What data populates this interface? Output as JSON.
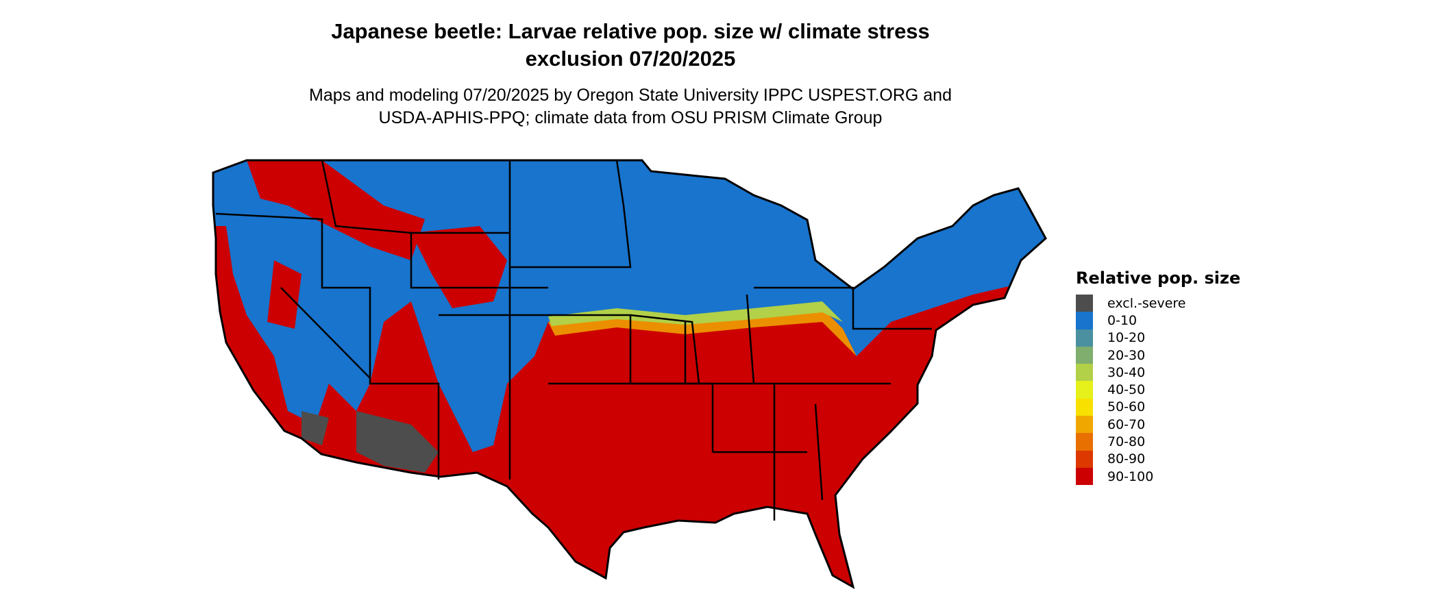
{
  "title_line1": "Japanese beetle: Larvae relative pop. size w/ climate stress",
  "title_line2": "exclusion 07/20/2025",
  "subtitle_line1": "Maps and modeling 07/20/2025 by Oregon State University IPPC USPEST.ORG and",
  "subtitle_line2": "USDA-APHIS-PPQ; climate data from OSU PRISM Climate Group",
  "map": {
    "region": "Contiguous United States",
    "state_borders": true
  },
  "legend": {
    "title": "Relative pop. size",
    "items": [
      {
        "label": "excl.-severe",
        "color": "#4d4d4d"
      },
      {
        "label": "0-10",
        "color": "#1874cd"
      },
      {
        "label": "10-20",
        "color": "#4a90a0"
      },
      {
        "label": "20-30",
        "color": "#7fae6f"
      },
      {
        "label": "30-40",
        "color": "#b2d048"
      },
      {
        "label": "40-50",
        "color": "#e6f01a"
      },
      {
        "label": "50-60",
        "color": "#f8e000"
      },
      {
        "label": "60-70",
        "color": "#f0a800"
      },
      {
        "label": "70-80",
        "color": "#e87000"
      },
      {
        "label": "80-90",
        "color": "#dc3800"
      },
      {
        "label": "90-100",
        "color": "#cc0000"
      }
    ]
  }
}
